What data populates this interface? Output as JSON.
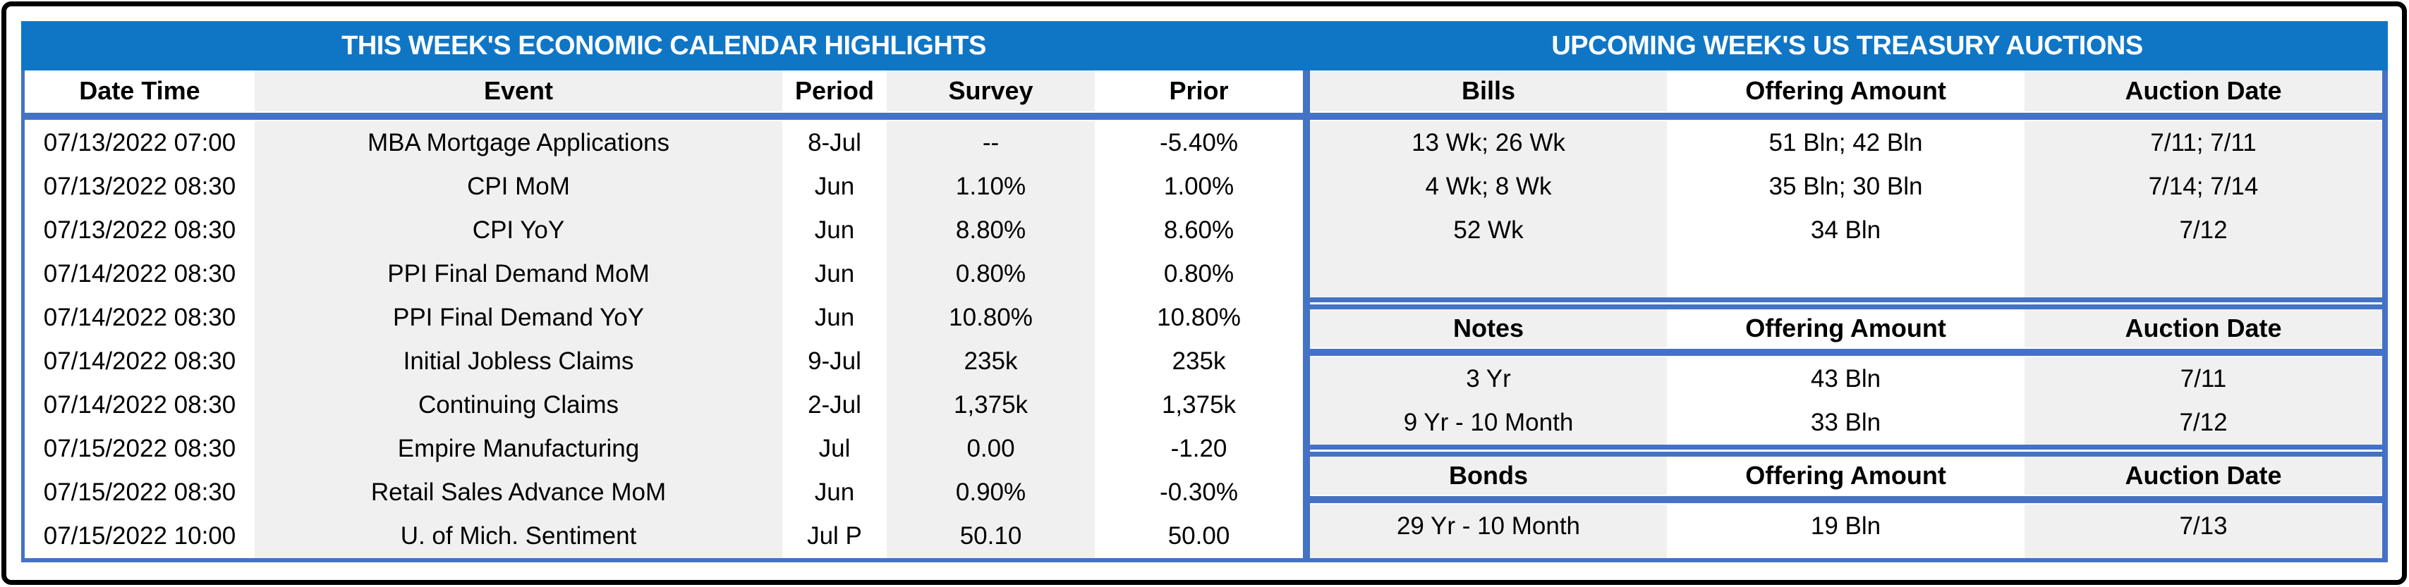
{
  "titles": {
    "economic_calendar": "THIS WEEK'S ECONOMIC CALENDAR HIGHLIGHTS",
    "treasury_auctions": "UPCOMING WEEK'S US TREASURY AUCTIONS"
  },
  "colors": {
    "title_bar_blue": "#0F76C6",
    "table_border_blue": "#4472C4",
    "column_band_gray": "#F0F0F0",
    "frame_black": "#000000"
  },
  "economic_calendar": {
    "columns": [
      "Date Time",
      "Event",
      "Period",
      "Survey",
      "Prior"
    ],
    "rows": [
      {
        "date_time": "07/13/2022 07:00",
        "event": "MBA Mortgage Applications",
        "period": "8-Jul",
        "survey": "--",
        "prior": "-5.40%"
      },
      {
        "date_time": "07/13/2022 08:30",
        "event": "CPI MoM",
        "period": "Jun",
        "survey": "1.10%",
        "prior": "1.00%"
      },
      {
        "date_time": "07/13/2022 08:30",
        "event": "CPI YoY",
        "period": "Jun",
        "survey": "8.80%",
        "prior": "8.60%"
      },
      {
        "date_time": "07/14/2022 08:30",
        "event": "PPI Final Demand MoM",
        "period": "Jun",
        "survey": "0.80%",
        "prior": "0.80%"
      },
      {
        "date_time": "07/14/2022 08:30",
        "event": "PPI Final Demand YoY",
        "period": "Jun",
        "survey": "10.80%",
        "prior": "10.80%"
      },
      {
        "date_time": "07/14/2022 08:30",
        "event": "Initial Jobless Claims",
        "period": "9-Jul",
        "survey": "235k",
        "prior": "235k"
      },
      {
        "date_time": "07/14/2022 08:30",
        "event": "Continuing Claims",
        "period": "2-Jul",
        "survey": "1,375k",
        "prior": "1,375k"
      },
      {
        "date_time": "07/15/2022 08:30",
        "event": "Empire Manufacturing",
        "period": "Jul",
        "survey": "0.00",
        "prior": "-1.20"
      },
      {
        "date_time": "07/15/2022 08:30",
        "event": "Retail Sales Advance MoM",
        "period": "Jun",
        "survey": "0.90%",
        "prior": "-0.30%"
      },
      {
        "date_time": "07/15/2022 10:00",
        "event": "U. of Mich. Sentiment",
        "period": "Jul P",
        "survey": "50.10",
        "prior": "50.00"
      }
    ]
  },
  "treasury_auctions": {
    "bills": {
      "headers": {
        "security": "Bills",
        "offering": "Offering Amount",
        "auction": "Auction Date"
      },
      "rows": [
        {
          "security": "13 Wk; 26 Wk",
          "offering": "51 Bln; 42 Bln",
          "auction": "7/11; 7/11"
        },
        {
          "security": "4 Wk; 8 Wk",
          "offering": "35 Bln; 30 Bln",
          "auction": "7/14; 7/14"
        },
        {
          "security": "52 Wk",
          "offering": "34 Bln",
          "auction": "7/12"
        }
      ]
    },
    "notes": {
      "headers": {
        "security": "Notes",
        "offering": "Offering Amount",
        "auction": "Auction Date"
      },
      "rows": [
        {
          "security": "3 Yr",
          "offering": "43 Bln",
          "auction": "7/11"
        },
        {
          "security": "9 Yr - 10 Month",
          "offering": "33 Bln",
          "auction": "7/12"
        }
      ]
    },
    "bonds": {
      "headers": {
        "security": "Bonds",
        "offering": "Offering Amount",
        "auction": "Auction Date"
      },
      "rows": [
        {
          "security": "29 Yr - 10 Month",
          "offering": "19 Bln",
          "auction": "7/13"
        }
      ]
    }
  }
}
